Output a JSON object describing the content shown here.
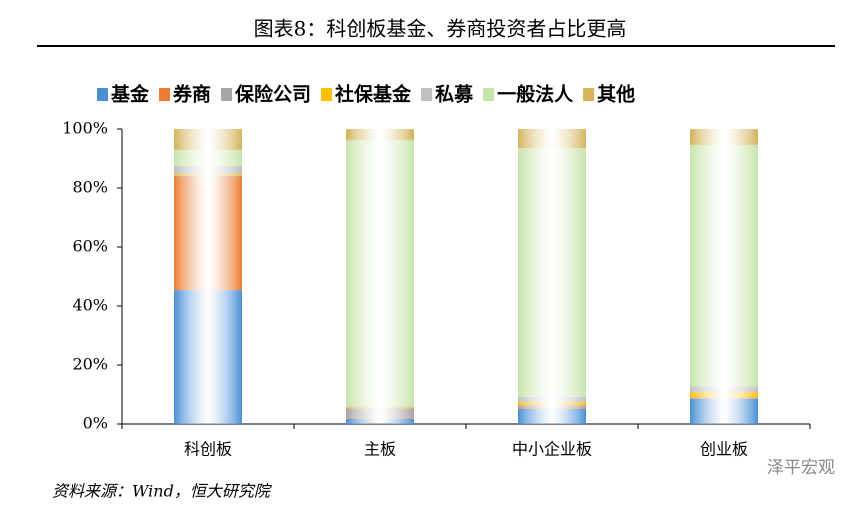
{
  "chart_data": {
    "type": "stacked_bar",
    "title": "图表8：科创板基金、券商投资者占比更高",
    "source": "资料来源：Wind，恒大研究院",
    "watermark": "泽平宏观",
    "categories": [
      "科创板",
      "主板",
      "中小企业板",
      "创业板"
    ],
    "series": [
      {
        "name": "基金",
        "color": "#4a8fd6",
        "values": [
          45.4,
          1.7,
          5.1,
          8.5
        ]
      },
      {
        "name": "券商",
        "color": "#ed7d31",
        "values": [
          38.5,
          0.2,
          0.3,
          0.2
        ]
      },
      {
        "name": "保险公司",
        "color": "#a5a5a5",
        "values": [
          0.3,
          3.4,
          1.0,
          0.3
        ]
      },
      {
        "name": "社保基金",
        "color": "#ffc000",
        "values": [
          0.5,
          0.3,
          1.0,
          1.8
        ]
      },
      {
        "name": "私募",
        "color": "#bfbfbf",
        "values": [
          2.8,
          0.3,
          1.8,
          2.0
        ]
      },
      {
        "name": "一般法人",
        "color": "#c6e4a8",
        "values": [
          5.4,
          90.4,
          84.4,
          81.8
        ]
      },
      {
        "name": "其他",
        "color": "#d4b35a",
        "values": [
          7.1,
          3.7,
          6.4,
          5.4
        ]
      }
    ],
    "ylim": [
      0,
      100
    ],
    "yticks": [
      {
        "value": 0,
        "label": "0%"
      },
      {
        "value": 20,
        "label": "20%"
      },
      {
        "value": 40,
        "label": "40%"
      },
      {
        "value": 60,
        "label": "60%"
      },
      {
        "value": 80,
        "label": "80%"
      },
      {
        "value": 100,
        "label": "100%"
      }
    ]
  }
}
